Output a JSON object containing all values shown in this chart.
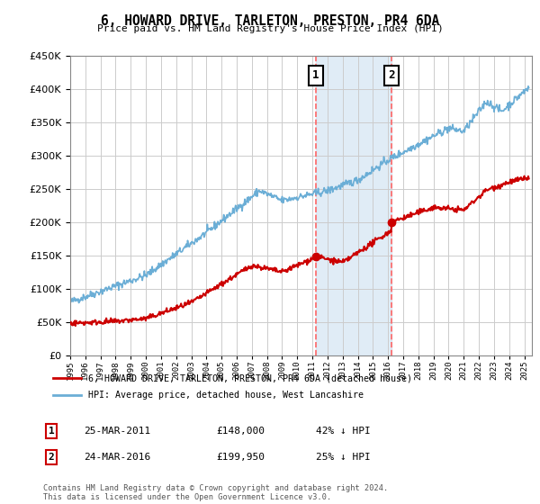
{
  "title": "6, HOWARD DRIVE, TARLETON, PRESTON, PR4 6DA",
  "subtitle": "Price paid vs. HM Land Registry's House Price Index (HPI)",
  "ylim": [
    0,
    450000
  ],
  "xlim_start": 1995.0,
  "xlim_end": 2025.5,
  "hpi_color": "#6baed6",
  "price_color": "#cc0000",
  "marker1_x": 2011.23,
  "marker1_y": 148000,
  "marker2_x": 2016.23,
  "marker2_y": 199950,
  "marker1_label": "1",
  "marker2_label": "2",
  "vline_color": "#ff6666",
  "shade_color": "#cce0f0",
  "legend_line1": "6, HOWARD DRIVE, TARLETON, PRESTON, PR4 6DA (detached house)",
  "legend_line2": "HPI: Average price, detached house, West Lancashire",
  "table_row1": [
    "1",
    "25-MAR-2011",
    "£148,000",
    "42% ↓ HPI"
  ],
  "table_row2": [
    "2",
    "24-MAR-2016",
    "£199,950",
    "25% ↓ HPI"
  ],
  "footnote": "Contains HM Land Registry data © Crown copyright and database right 2024.\nThis data is licensed under the Open Government Licence v3.0.",
  "bg_color": "#ffffff",
  "grid_color": "#cccccc"
}
